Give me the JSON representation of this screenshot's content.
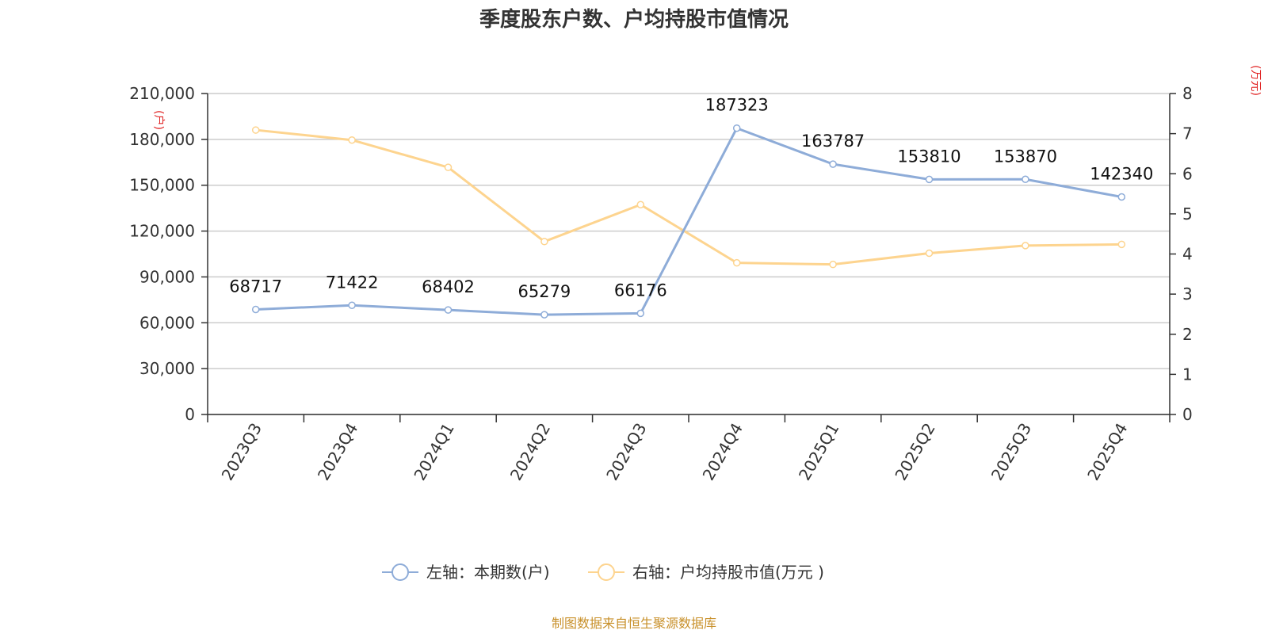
{
  "title": "季度股东户数、户均持股市值情况",
  "source": "制图数据来自恒生聚源数据库",
  "chart_data": {
    "type": "line",
    "categories": [
      "2023Q3",
      "2023Q4",
      "2024Q1",
      "2024Q2",
      "2024Q3",
      "2024Q4",
      "2025Q1",
      "2025Q2",
      "2025Q3",
      "2025Q4"
    ],
    "left_axis": {
      "unit": "(户)",
      "ylim": [
        0,
        210000
      ],
      "ticks": [
        0,
        30000,
        60000,
        90000,
        120000,
        150000,
        180000,
        210000
      ],
      "tick_labels": [
        "0",
        "30,000",
        "60,000",
        "90,000",
        "120,000",
        "150,000",
        "180,000",
        "210,000"
      ]
    },
    "right_axis": {
      "unit": "(万元)",
      "ylim": [
        0,
        8
      ],
      "ticks": [
        0,
        1,
        2,
        3,
        4,
        5,
        6,
        7,
        8
      ],
      "tick_labels": [
        "0",
        "1",
        "2",
        "3",
        "4",
        "5",
        "6",
        "7",
        "8"
      ]
    },
    "series": [
      {
        "name": "左轴：本期数(户)",
        "axis": "left",
        "color": "#8eacd8",
        "values": [
          68717,
          71422,
          68402,
          65279,
          66176,
          187323,
          163787,
          153810,
          153870,
          142340
        ],
        "labels": [
          "68717",
          "71422",
          "68402",
          "65279",
          "66176",
          "187323",
          "163787",
          "153810",
          "153870",
          "142340"
        ]
      },
      {
        "name": "右轴：户均持股市值(万元 )",
        "axis": "right",
        "color": "#fdd48f",
        "values": [
          7.09,
          6.84,
          6.16,
          4.31,
          5.23,
          3.78,
          3.74,
          4.02,
          4.21,
          4.24
        ]
      }
    ],
    "grid": true,
    "legend_position": "bottom-center"
  }
}
